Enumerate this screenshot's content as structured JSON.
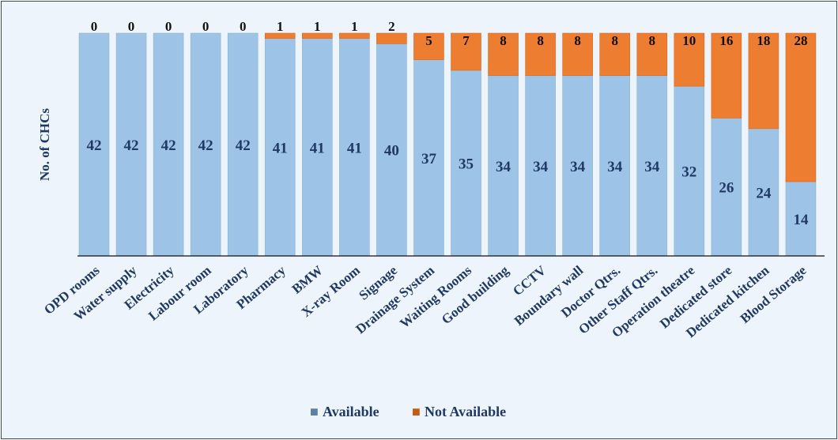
{
  "chart_data": {
    "type": "bar",
    "stacked": true,
    "ylabel": "No. of CHCs",
    "ylim": [
      0,
      42
    ],
    "grid": false,
    "legend_position": "bottom",
    "categories": [
      "OPD rooms",
      "Water supply",
      "Electricity",
      "Labour room",
      "Laboratory",
      "Pharmacy",
      "BMW",
      "X-ray Room",
      "Signage",
      "Drainage System",
      "Waiting Rooms",
      "Good building",
      "CCTV",
      "Boundary wall",
      "Doctor Qtrs.",
      "Other Staff Qtrs.",
      "Operation theatre",
      "Dedicated store",
      "Dedicated kitchen",
      "Blood Storage"
    ],
    "series": [
      {
        "name": "Available",
        "color": "#9dc3e6",
        "values": [
          42,
          42,
          42,
          42,
          42,
          41,
          41,
          41,
          40,
          37,
          35,
          34,
          34,
          34,
          34,
          34,
          32,
          26,
          24,
          14
        ]
      },
      {
        "name": "Not Available",
        "color": "#ed7d31",
        "values": [
          0,
          0,
          0,
          0,
          0,
          1,
          1,
          1,
          2,
          5,
          7,
          8,
          8,
          8,
          8,
          8,
          10,
          16,
          18,
          28
        ]
      }
    ]
  },
  "legend_markers": {
    "available": "■",
    "not_available": "■"
  }
}
